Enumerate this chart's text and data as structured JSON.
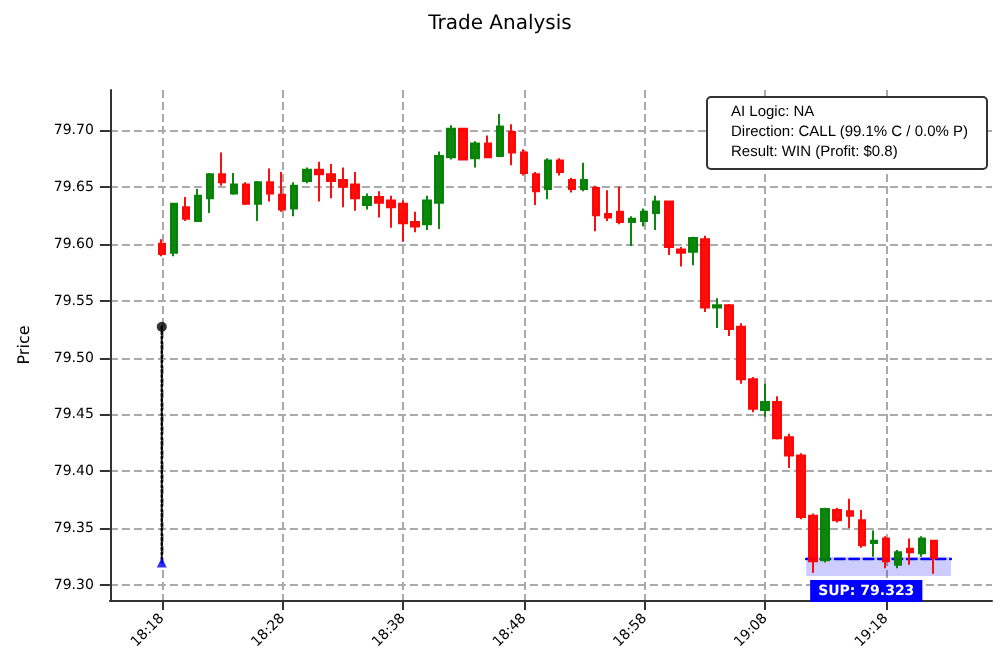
{
  "chart_data": {
    "type": "candlestick",
    "title": "Trade Analysis",
    "ylabel": "Price",
    "x": [
      18.3,
      18.3167,
      18.3333,
      18.35,
      18.3667,
      18.3833,
      18.4,
      18.4167,
      18.4333,
      18.45,
      18.4667,
      18.4833,
      18.5,
      18.5167,
      18.5333,
      18.55,
      18.5667,
      18.5833,
      18.6,
      18.6167,
      18.6333,
      18.65,
      18.6667,
      18.6833,
      18.7,
      18.7167,
      18.7333,
      18.75,
      18.7667,
      18.7833,
      18.8,
      18.8167,
      18.8333,
      18.85,
      18.8667,
      18.8833,
      18.9,
      18.9167,
      18.9333,
      18.95,
      18.9667,
      18.9833,
      19.0,
      19.0167,
      19.0333,
      19.05,
      19.0667,
      19.0833,
      19.1,
      19.1167,
      19.1333,
      19.15,
      19.1667,
      19.1833,
      19.2,
      19.2167,
      19.2333,
      19.25,
      19.2667,
      19.2833,
      19.3,
      19.3167,
      19.3333,
      19.35,
      19.3667
    ],
    "ohlc": [
      [
        79.6,
        79.604,
        79.589,
        79.591
      ],
      [
        79.592,
        79.636,
        79.589,
        79.635
      ],
      [
        79.632,
        79.641,
        79.62,
        79.622
      ],
      [
        79.62,
        79.648,
        79.619,
        79.642
      ],
      [
        79.64,
        79.662,
        79.627,
        79.661
      ],
      [
        79.661,
        79.68,
        79.651,
        79.654
      ],
      [
        79.644,
        79.662,
        79.643,
        79.652
      ],
      [
        79.652,
        79.654,
        79.634,
        79.635
      ],
      [
        79.635,
        79.655,
        79.62,
        79.654
      ],
      [
        79.654,
        79.666,
        79.637,
        79.644
      ],
      [
        79.643,
        79.663,
        79.628,
        79.63
      ],
      [
        79.631,
        79.654,
        79.624,
        79.651
      ],
      [
        79.655,
        79.667,
        79.653,
        79.665
      ],
      [
        79.665,
        79.672,
        79.637,
        79.661
      ],
      [
        79.661,
        79.67,
        79.64,
        79.655
      ],
      [
        79.656,
        79.667,
        79.632,
        79.65
      ],
      [
        79.652,
        79.663,
        79.629,
        79.64
      ],
      [
        79.634,
        79.644,
        79.63,
        79.641
      ],
      [
        79.641,
        79.646,
        79.623,
        79.636
      ],
      [
        79.638,
        79.642,
        79.614,
        79.632
      ],
      [
        79.635,
        79.638,
        79.602,
        79.618
      ],
      [
        79.619,
        79.628,
        79.61,
        79.615
      ],
      [
        79.617,
        79.642,
        79.612,
        79.638
      ],
      [
        79.636,
        79.681,
        79.613,
        79.677
      ],
      [
        79.676,
        79.704,
        79.674,
        79.701
      ],
      [
        79.701,
        79.701,
        79.673,
        79.674
      ],
      [
        79.675,
        79.69,
        79.667,
        79.688
      ],
      [
        79.688,
        79.695,
        79.675,
        79.676
      ],
      [
        79.677,
        79.714,
        79.676,
        79.703
      ],
      [
        79.698,
        79.705,
        79.669,
        79.68
      ],
      [
        79.68,
        79.683,
        79.66,
        79.662
      ],
      [
        79.661,
        79.663,
        79.634,
        79.646
      ],
      [
        79.648,
        79.675,
        79.639,
        79.673
      ],
      [
        79.673,
        79.675,
        79.66,
        79.663
      ],
      [
        79.656,
        79.658,
        79.645,
        79.648
      ],
      [
        79.648,
        79.671,
        79.646,
        79.656
      ],
      [
        79.649,
        79.651,
        79.611,
        79.625
      ],
      [
        79.626,
        79.647,
        79.62,
        79.623
      ],
      [
        79.628,
        79.65,
        79.617,
        79.619
      ],
      [
        79.619,
        79.624,
        79.598,
        79.622
      ],
      [
        79.62,
        79.631,
        79.615,
        79.628
      ],
      [
        79.627,
        79.642,
        79.612,
        79.637
      ],
      [
        79.637,
        79.638,
        79.59,
        79.597
      ],
      [
        79.595,
        79.597,
        79.58,
        79.592
      ],
      [
        79.593,
        79.606,
        79.581,
        79.605
      ],
      [
        79.604,
        79.607,
        79.54,
        79.544
      ],
      [
        79.544,
        79.552,
        79.526,
        79.546
      ],
      [
        79.546,
        79.547,
        79.519,
        79.525
      ],
      [
        79.527,
        79.53,
        79.477,
        79.481
      ],
      [
        79.481,
        79.483,
        79.452,
        79.455
      ],
      [
        79.454,
        79.477,
        79.448,
        79.461
      ],
      [
        79.461,
        79.466,
        79.428,
        79.429
      ],
      [
        79.43,
        79.433,
        79.403,
        79.414
      ],
      [
        79.414,
        79.416,
        79.358,
        79.36
      ],
      [
        79.361,
        79.363,
        79.311,
        79.321
      ],
      [
        79.322,
        79.368,
        79.32,
        79.367
      ],
      [
        79.366,
        79.368,
        79.355,
        79.357
      ],
      [
        79.365,
        79.376,
        79.35,
        79.361
      ],
      [
        79.357,
        79.366,
        79.333,
        79.335
      ],
      [
        79.337,
        79.348,
        79.325,
        79.339
      ],
      [
        79.341,
        79.343,
        79.315,
        79.321
      ],
      [
        79.318,
        79.331,
        79.315,
        79.329
      ],
      [
        79.332,
        79.341,
        79.318,
        79.329
      ],
      [
        79.328,
        79.343,
        79.325,
        79.341
      ],
      [
        79.339,
        79.34,
        79.31,
        79.324
      ]
    ],
    "colors": [
      "#ff0000",
      "#008000",
      "#ff0000",
      "#008000",
      "#008000",
      "#ff0000",
      "#008000",
      "#ff0000",
      "#008000",
      "#ff0000",
      "#ff0000",
      "#008000",
      "#008000",
      "#ff0000",
      "#ff0000",
      "#ff0000",
      "#ff0000",
      "#008000",
      "#ff0000",
      "#ff0000",
      "#ff0000",
      "#ff0000",
      "#008000",
      "#008000",
      "#008000",
      "#ff0000",
      "#008000",
      "#ff0000",
      "#008000",
      "#ff0000",
      "#ff0000",
      "#ff0000",
      "#008000",
      "#ff0000",
      "#ff0000",
      "#008000",
      "#ff0000",
      "#ff0000",
      "#ff0000",
      "#008000",
      "#008000",
      "#008000",
      "#ff0000",
      "#ff0000",
      "#008000",
      "#ff0000",
      "#008000",
      "#ff0000",
      "#ff0000",
      "#ff0000",
      "#008000",
      "#ff0000",
      "#ff0000",
      "#ff0000",
      "#ff0000",
      "#008000",
      "#ff0000",
      "#ff0000",
      "#ff0000",
      "#008000",
      "#ff0000",
      "#008000",
      "#ff0000",
      "#008000",
      "#ff0000"
    ],
    "series": [
      {
        "type": "line",
        "x": [
          18.3,
          18.3
        ],
        "values": [
          79.527,
          79.32
        ],
        "color": "#000000",
        "line_style": "dotted",
        "marker": "none"
      },
      {
        "type": "scatter",
        "x": [
          18.3
        ],
        "values": [
          79.527
        ],
        "color": "#000000",
        "marker": "circle"
      },
      {
        "type": "scatter",
        "x": [
          18.3
        ],
        "values": [
          79.32
        ],
        "color": "#0000ff",
        "marker": "triangle"
      },
      {
        "type": "line",
        "x": [
          19.19,
          19.39
        ],
        "values": [
          79.323,
          79.323
        ],
        "lower": [
          79.308,
          79.308
        ],
        "upper": [
          79.325,
          79.325
        ],
        "color": "#0000ff",
        "line_style": "dashed",
        "marker": "none"
      }
    ],
    "annotations": [
      "AI Logic: NA",
      "Direction: CALL (99.1% C / 0.0% P)",
      "Result: WIN (Profit: $0.8)",
      "SUP: 79.323"
    ],
    "xlim": [
      18.2283,
      19.4467
    ],
    "xticks": [
      {
        "value": 18.3,
        "label": "18:18"
      },
      {
        "value": 18.4667,
        "label": "18:28"
      },
      {
        "value": 18.6333,
        "label": "18:38"
      },
      {
        "value": 18.8,
        "label": "18:48"
      },
      {
        "value": 18.9667,
        "label": "18:58"
      },
      {
        "value": 19.1333,
        "label": "19:08"
      },
      {
        "value": 19.3,
        "label": "19:18"
      }
    ],
    "ylim": [
      79.287,
      79.735
    ],
    "yticks": [
      {
        "value": 79.3,
        "label": "79.30"
      },
      {
        "value": 79.35,
        "label": "79.35"
      },
      {
        "value": 79.4,
        "label": "79.40"
      },
      {
        "value": 79.45,
        "label": "79.45"
      },
      {
        "value": 79.5,
        "label": "79.50"
      },
      {
        "value": 79.55,
        "label": "79.55"
      },
      {
        "value": 79.6,
        "label": "79.60"
      },
      {
        "value": 79.65,
        "label": "79.65"
      },
      {
        "value": 79.7,
        "label": "79.70"
      }
    ],
    "grid": true
  }
}
